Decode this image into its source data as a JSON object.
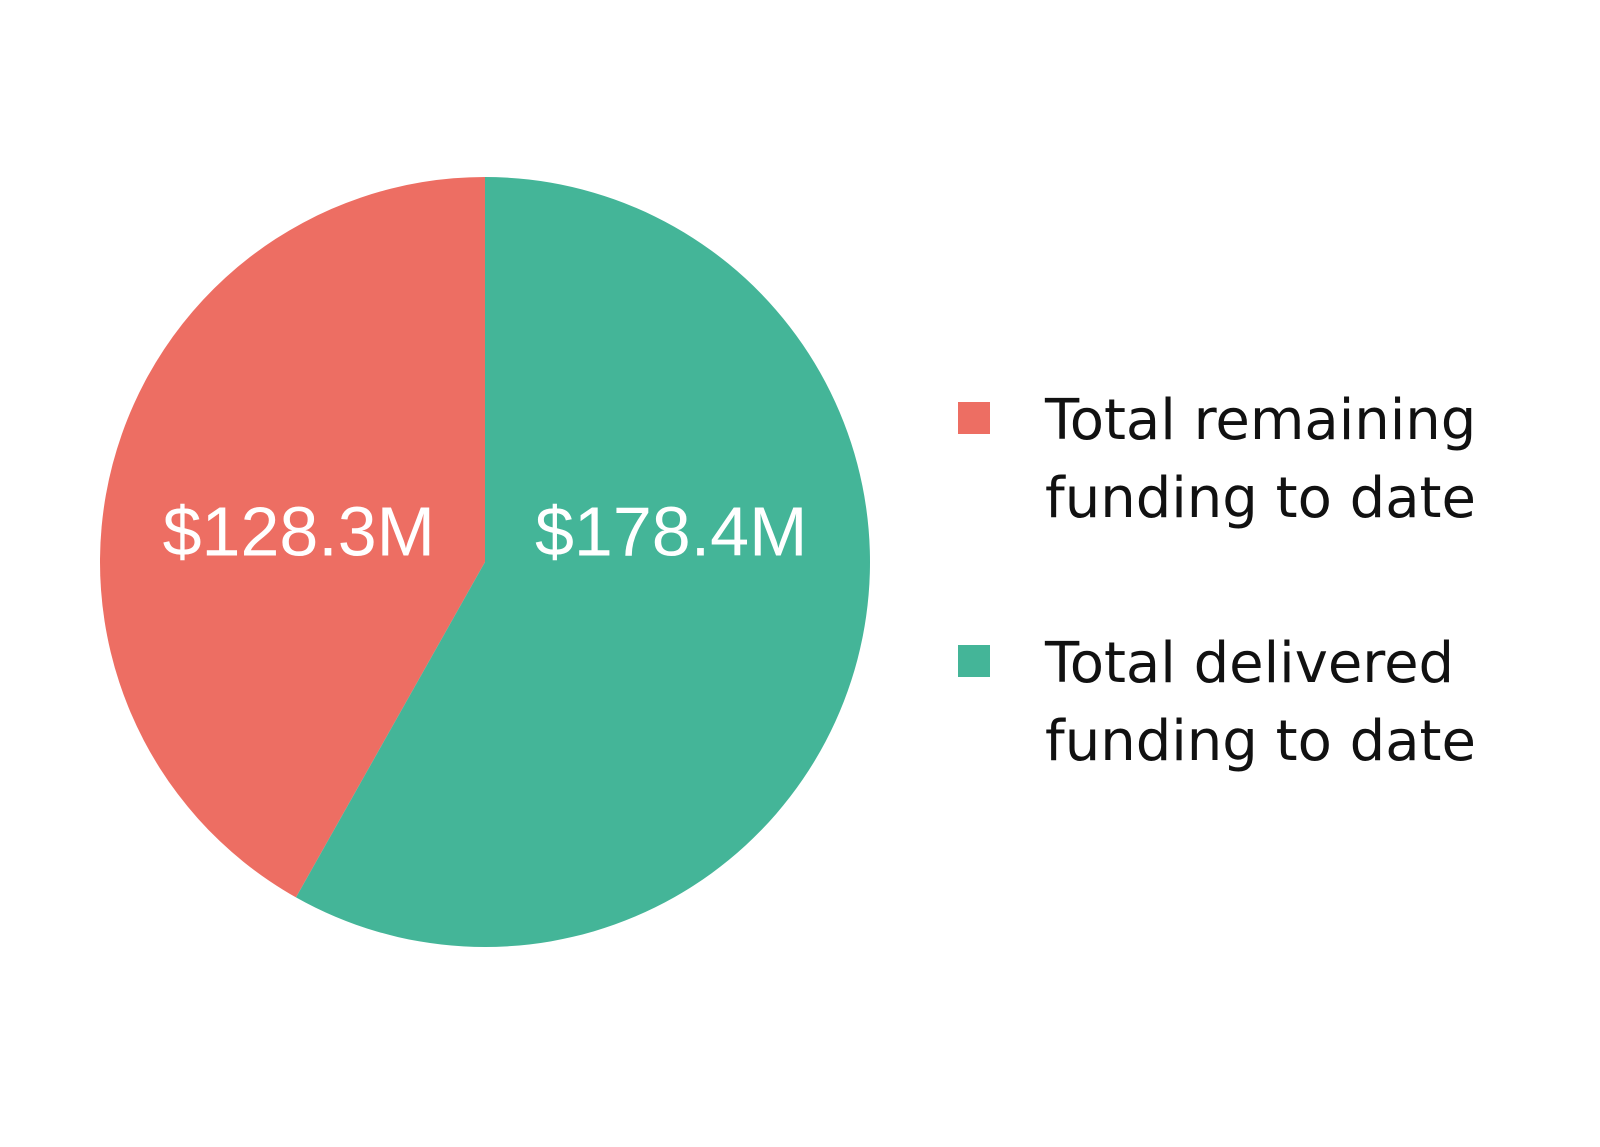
{
  "chart_data": {
    "type": "pie",
    "categories": [
      "Total remaining funding to date",
      "Total delivered funding to date"
    ],
    "values": [
      128.3,
      178.4
    ],
    "value_labels": [
      "$128.3M",
      "$178.4M"
    ],
    "colors": [
      "#ed6e63",
      "#44b598"
    ],
    "legend": "right"
  }
}
